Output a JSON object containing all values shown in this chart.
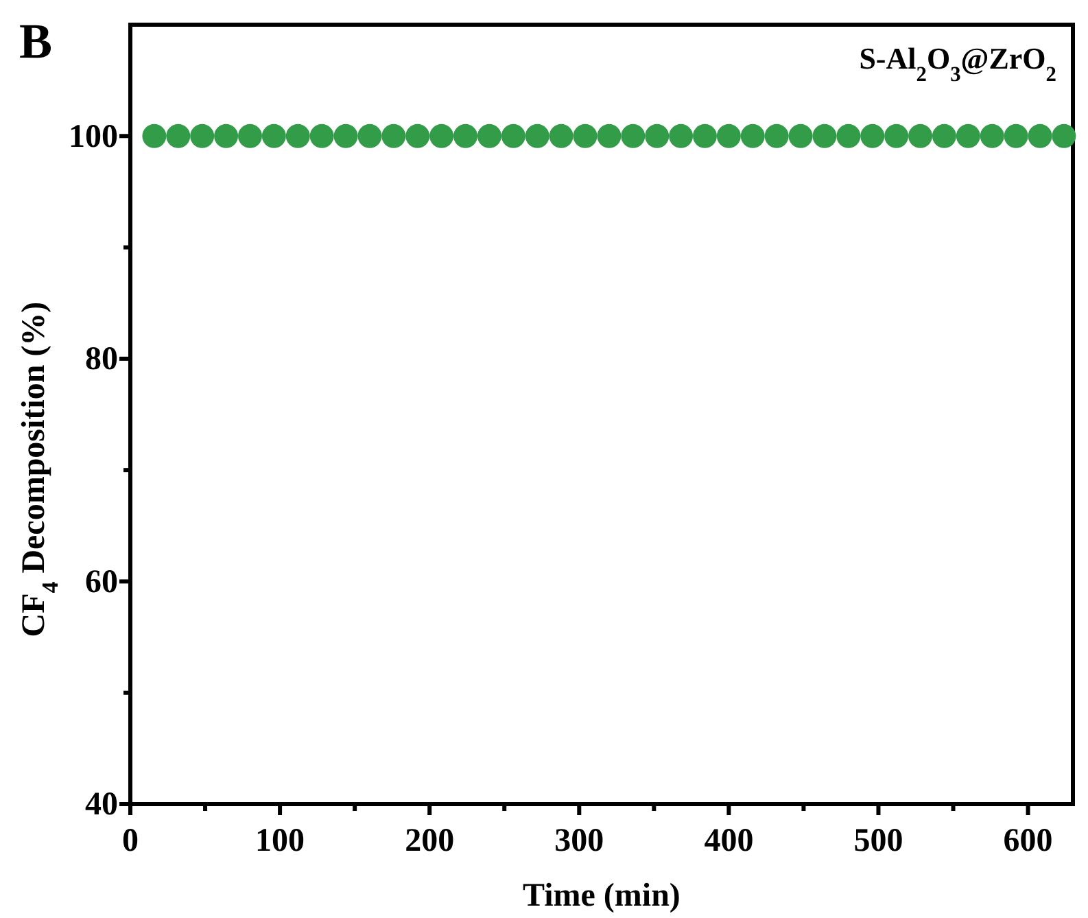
{
  "chart_data": {
    "type": "scatter",
    "title": "B",
    "xlabel": "Time (min)",
    "ylabel": "CF$_{4}$ Decomposition (%)",
    "x": [
      16,
      32,
      48,
      64,
      80,
      96,
      112,
      128,
      144,
      160,
      176,
      192,
      208,
      224,
      240,
      256,
      272,
      288,
      304,
      320,
      336,
      352,
      368,
      384,
      400,
      416,
      432,
      448,
      464,
      480,
      496,
      512,
      528,
      544,
      560,
      576,
      592,
      608,
      624
    ],
    "series": [
      {
        "name": "S-Al$_{2}$O$_{3}$@ZrO$_{2}$",
        "color": "#339c48",
        "values": [
          100,
          100,
          100,
          100,
          100,
          100,
          100,
          100,
          100,
          100,
          100,
          100,
          100,
          100,
          100,
          100,
          100,
          100,
          100,
          100,
          100,
          100,
          100,
          100,
          100,
          100,
          100,
          100,
          100,
          100,
          100,
          100,
          100,
          100,
          100,
          100,
          100,
          100,
          100
        ]
      }
    ],
    "xlim": [
      0,
      630
    ],
    "ylim": [
      40,
      110
    ],
    "xticks": [
      0,
      {
        "value": 50,
        "label": null
      },
      100,
      {
        "value": 150,
        "label": null
      },
      200,
      {
        "value": 250,
        "label": null
      },
      300,
      {
        "value": 350,
        "label": null
      },
      400,
      {
        "value": 450,
        "label": null
      },
      500,
      {
        "value": 550,
        "label": null
      },
      600
    ],
    "yticks": [
      40,
      {
        "value": 50,
        "label": null
      },
      60,
      {
        "value": 70,
        "label": null
      },
      80,
      {
        "value": 90,
        "label": null
      },
      100
    ],
    "marker": "circle",
    "legend": "top right",
    "grid": false
  }
}
